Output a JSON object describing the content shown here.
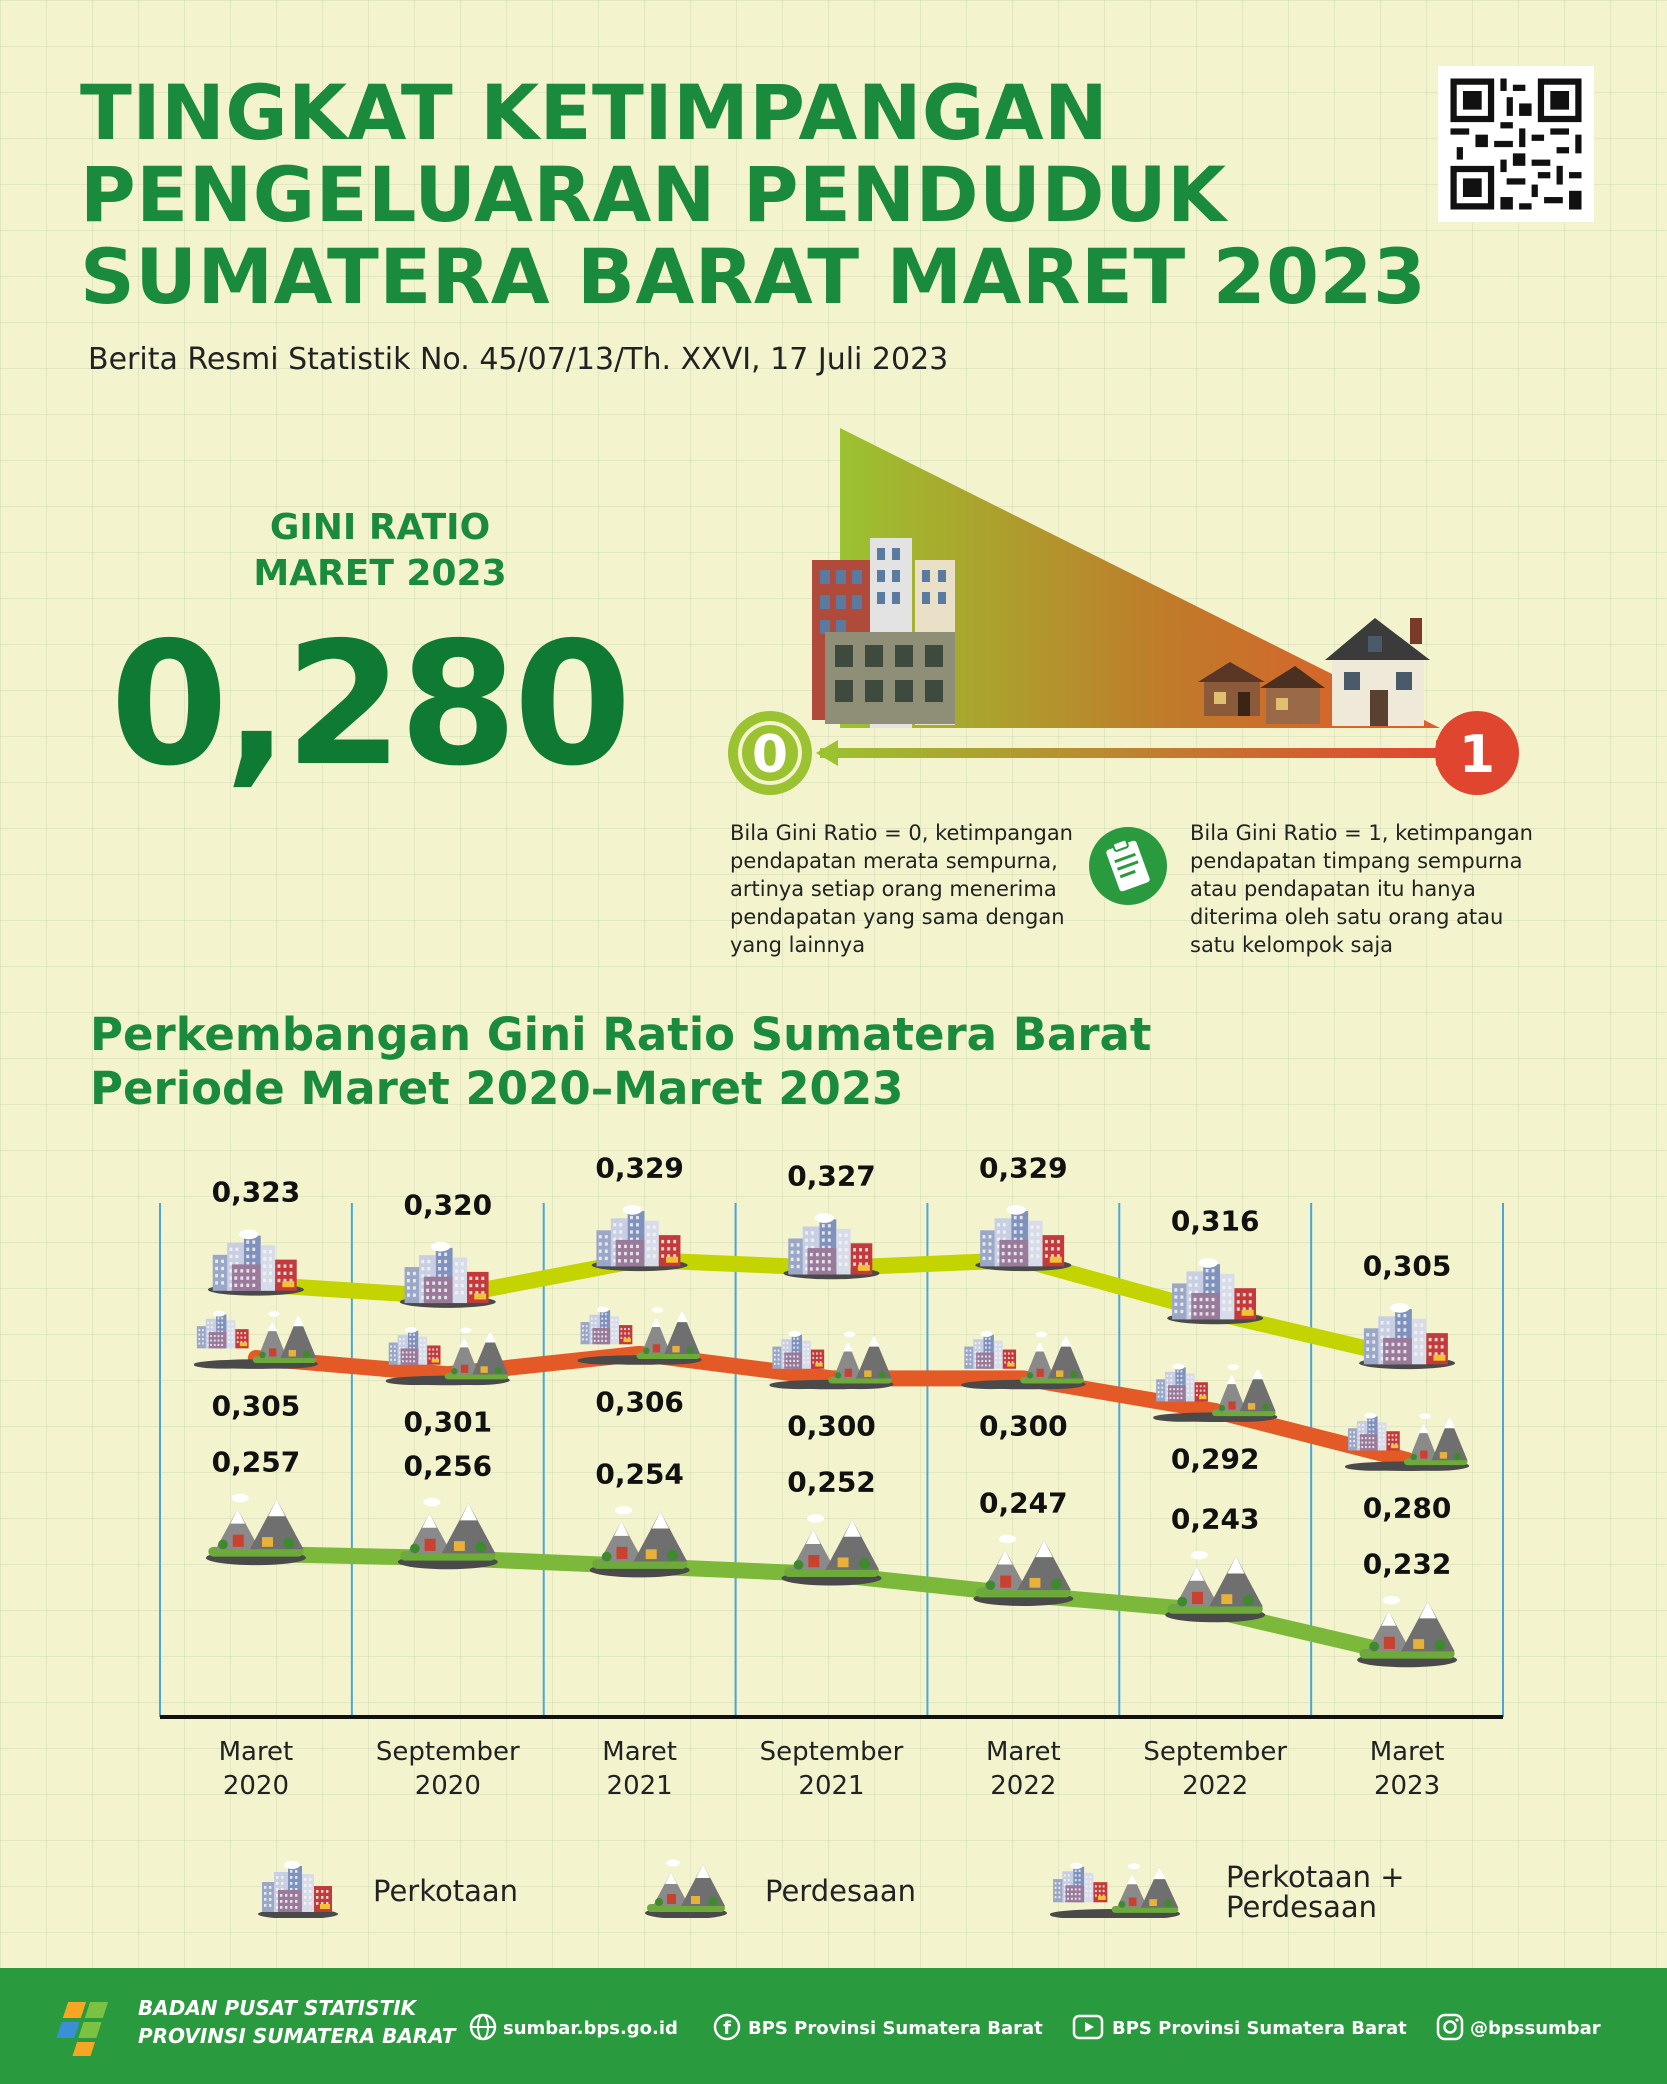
{
  "header": {
    "title_lines": [
      "TINGKAT KETIMPANGAN",
      "PENGELUARAN PENDUDUK",
      "SUMATERA BARAT MARET 2023"
    ],
    "subtitle": "Berita Resmi Statistik No. 45/07/13/Th. XXVI, 17 Juli 2023"
  },
  "gini": {
    "label_line1": "GINI RATIO",
    "label_line2": "MARET 2023",
    "value": "0,280",
    "scale_min": "0",
    "scale_max": "1",
    "desc_zero": "Bila Gini Ratio = 0, ketimpangan pendapatan merata sempurna, artinya setiap orang menerima pendapatan yang sama dengan yang lainnya",
    "desc_one": "Bila Gini Ratio = 1, ketimpangan pendapatan timpang sempurna atau pendapatan itu hanya diterima oleh satu orang atau satu kelompok saja"
  },
  "section": {
    "title_line1": "Perkembangan Gini Ratio Sumatera Barat",
    "title_line2": "Periode Maret 2020–Maret 2023"
  },
  "chart_data": {
    "type": "line",
    "title": "Perkembangan Gini Ratio Sumatera Barat Periode Maret 2020–Maret 2023",
    "categories": [
      [
        "Maret",
        "2020"
      ],
      [
        "September",
        "2020"
      ],
      [
        "Maret",
        "2021"
      ],
      [
        "September",
        "2021"
      ],
      [
        "Maret",
        "2022"
      ],
      [
        "September",
        "2022"
      ],
      [
        "Maret",
        "2023"
      ]
    ],
    "series": [
      {
        "name": "Perkotaan",
        "color": "#c3d400",
        "values": [
          0.323,
          0.32,
          0.329,
          0.327,
          0.329,
          0.316,
          0.305
        ],
        "labels": [
          "0,323",
          "0,320",
          "0,329",
          "0,327",
          "0,329",
          "0,316",
          "0,305"
        ]
      },
      {
        "name": "Perkotaan + Perdesaan",
        "color": "#e45a26",
        "values": [
          0.305,
          0.301,
          0.306,
          0.3,
          0.3,
          0.292,
          0.28
        ],
        "labels": [
          "0,305",
          "0,301",
          "0,306",
          "0,300",
          "0,300",
          "0,292",
          "0,280"
        ]
      },
      {
        "name": "Perdesaan",
        "color": "#7cb83a",
        "values": [
          0.257,
          0.256,
          0.254,
          0.252,
          0.247,
          0.243,
          0.232
        ],
        "labels": [
          "0,257",
          "0,256",
          "0,254",
          "0,252",
          "0,247",
          "0,243",
          "0,232"
        ]
      }
    ]
  },
  "legend": [
    {
      "name": "Perkotaan",
      "icon": "city-icon"
    },
    {
      "name": "Perdesaan",
      "icon": "mountain-village-icon"
    },
    {
      "name_line1": "Perkotaan +",
      "name_line2": "Perdesaan",
      "icon": "city-mountain-icon"
    }
  ],
  "footer": {
    "org_line1": "BADAN PUSAT STATISTIK",
    "org_line2": "PROVINSI SUMATERA BARAT",
    "website": "sumbar.bps.go.id",
    "facebook": "BPS Provinsi Sumatera Barat",
    "youtube": "BPS Provinsi Sumatera Barat",
    "instagram": "@bpssumbar"
  },
  "colors": {
    "brand_green": "#1a8a3c",
    "footer_green": "#2a9a3e",
    "background": "#f3f4cd"
  }
}
